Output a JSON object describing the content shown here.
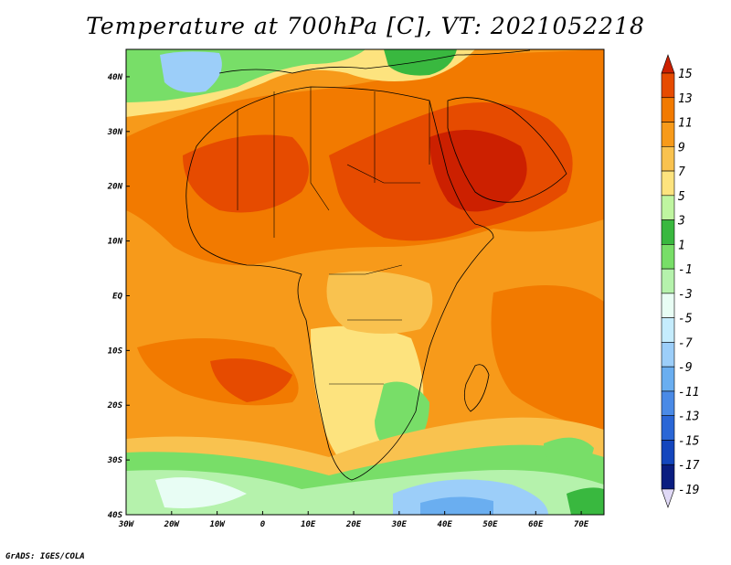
{
  "title": "Temperature at 700hPa [C], VT: 2021052218",
  "credit": "GrADS: IGES/COLA",
  "map": {
    "lon_labels": [
      "30W",
      "20W",
      "10W",
      "0",
      "10E",
      "20E",
      "30E",
      "40E",
      "50E",
      "60E",
      "70E"
    ],
    "lat_labels": [
      "40N",
      "30N",
      "20N",
      "10N",
      "EQ",
      "10S",
      "20S",
      "30S",
      "40S"
    ],
    "lon_range": [
      -30,
      75
    ],
    "lat_range": [
      -40,
      45
    ]
  },
  "colorbar": {
    "labels": [
      "15",
      "13",
      "11",
      "9",
      "7",
      "5",
      "3",
      "1",
      "-1",
      "-3",
      "-5",
      "-7",
      "-9",
      "-11",
      "-13",
      "-15",
      "-17",
      "-19"
    ],
    "colors": [
      "#cc2000",
      "#e64b00",
      "#f27a00",
      "#f79a1a",
      "#f9c24f",
      "#fde37e",
      "#bff5a0",
      "#39b83f",
      "#78de68",
      "#b5f2ac",
      "#e8fdf4",
      "#c5ecfd",
      "#9ccef9",
      "#6aaef0",
      "#4a8ae6",
      "#2a66d6",
      "#1446bd",
      "#0a1d80",
      "#e0d9f6"
    ]
  }
}
